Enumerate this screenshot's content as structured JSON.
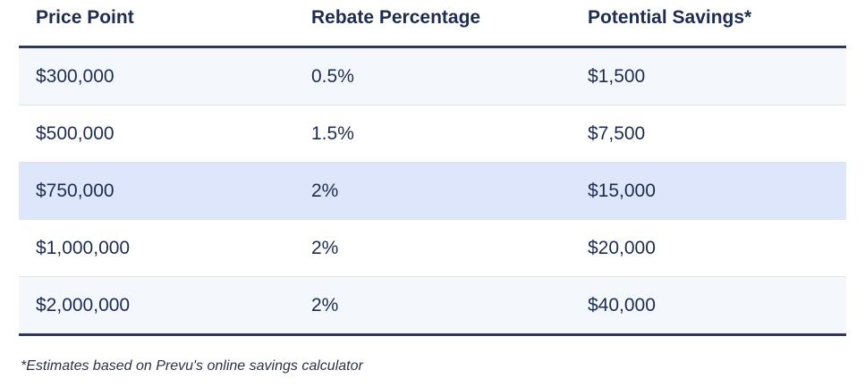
{
  "table": {
    "headers": [
      "Price Point",
      "Rebate Percentage",
      "Potential Savings*"
    ],
    "rows": [
      [
        "$300,000",
        "0.5%",
        "$1,500"
      ],
      [
        "$500,000",
        "1.5%",
        "$7,500"
      ],
      [
        "$750,000",
        "2%",
        "$15,000"
      ],
      [
        "$1,000,000",
        "2%",
        "$20,000"
      ],
      [
        "$2,000,000",
        "2%",
        "$40,000"
      ]
    ],
    "highlighted_row": 3
  },
  "footnote": "*Estimates based on Prevu's online savings calculator",
  "colors": {
    "text": "#1e2d4f",
    "rule": "#2b3a64",
    "alt_row": "#f4f7fb",
    "highlight_row": "#dde6fa"
  }
}
